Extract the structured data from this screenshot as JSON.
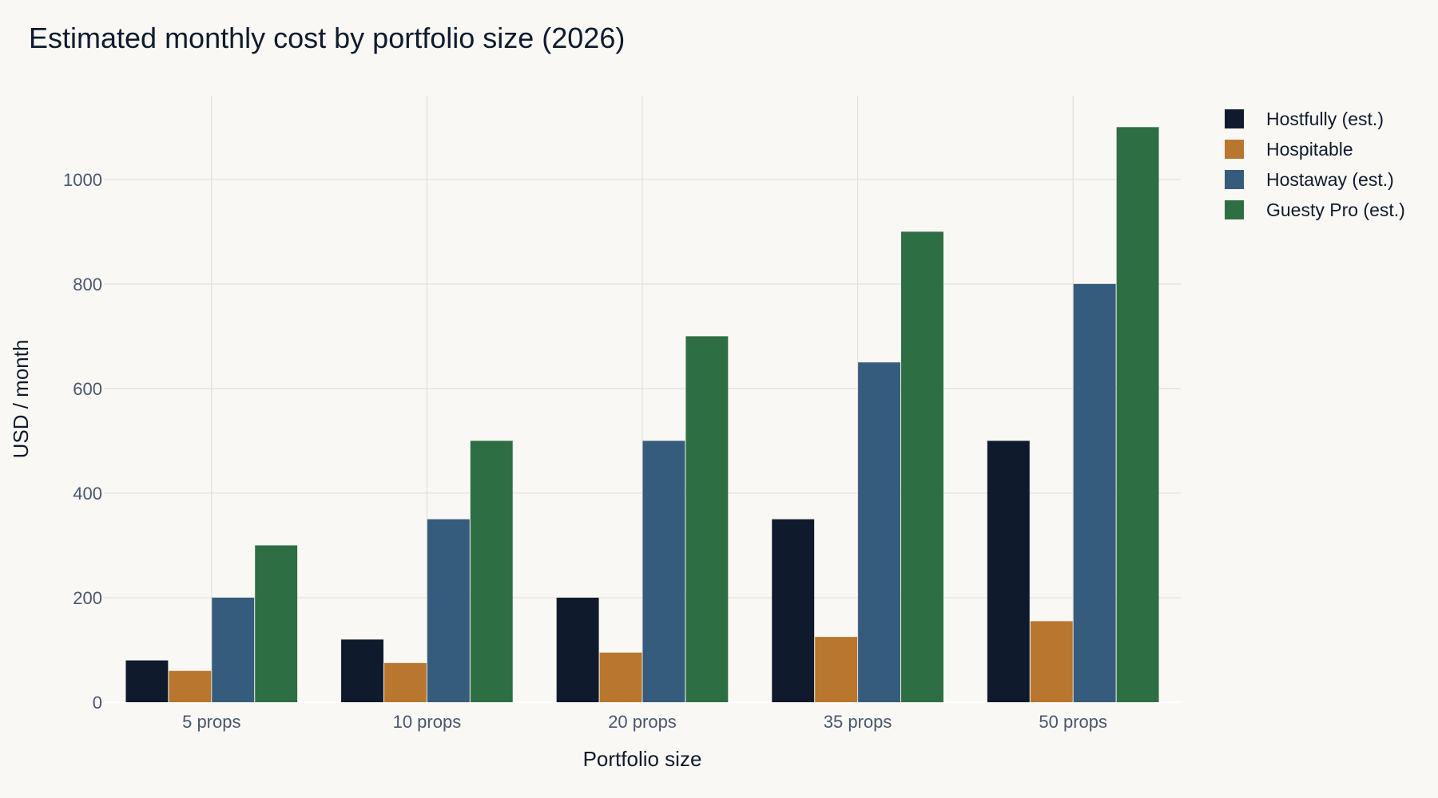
{
  "chart_data": {
    "type": "bar",
    "title": "Estimated monthly cost by portfolio size (2026)",
    "xlabel": "Portfolio size",
    "ylabel": "USD / month",
    "categories": [
      "5 props",
      "10 props",
      "20 props",
      "35 props",
      "50 props"
    ],
    "ylim": [
      0,
      1160
    ],
    "yticks": [
      0,
      200,
      400,
      600,
      800,
      1000
    ],
    "grid": true,
    "legend_position": "top-right",
    "series": [
      {
        "name": "Hostfully (est.)",
        "color": "#0f1b2d",
        "values": [
          80,
          120,
          200,
          350,
          500
        ]
      },
      {
        "name": "Hospitable",
        "color": "#b8762e",
        "values": [
          60,
          75,
          95,
          125,
          155
        ]
      },
      {
        "name": "Hostaway (est.)",
        "color": "#355b7d",
        "values": [
          200,
          350,
          500,
          650,
          800
        ]
      },
      {
        "name": "Guesty Pro (est.)",
        "color": "#2e6e43",
        "values": [
          300,
          500,
          700,
          900,
          1100
        ]
      }
    ]
  }
}
